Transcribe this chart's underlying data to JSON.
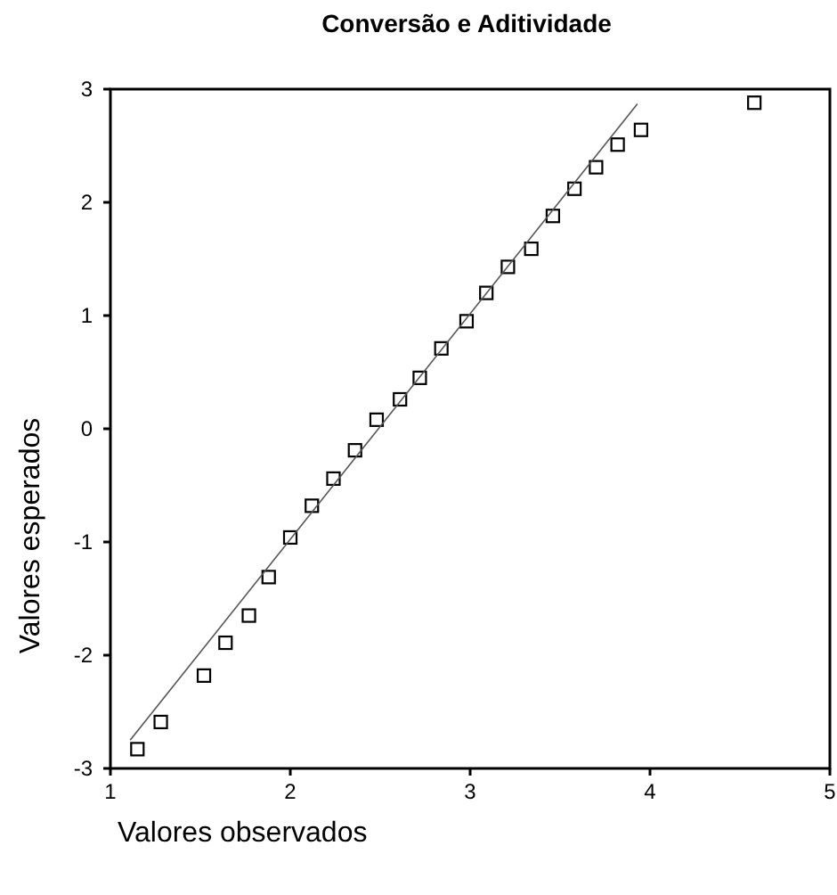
{
  "chart_data": {
    "type": "scatter",
    "title": "Conversão e Aditividade",
    "xlabel": "Valores observados",
    "ylabel": "Valores esperados",
    "xlim": [
      1,
      5
    ],
    "xticks": [
      1,
      2,
      3,
      4,
      5
    ],
    "ylim": [
      -3,
      3
    ],
    "yticks": [
      -3,
      -2,
      -1,
      0,
      1,
      2,
      3
    ],
    "grid": false,
    "series": [
      {
        "marker": "square",
        "color": "#000000",
        "x": [
          1.15,
          1.28,
          1.52,
          1.64,
          1.77,
          1.88,
          2.0,
          2.12,
          2.24,
          2.36,
          2.48,
          2.61,
          2.72,
          2.84,
          2.98,
          3.09,
          3.21,
          3.34,
          3.46,
          3.58,
          3.7,
          3.82,
          3.95,
          4.58
        ],
        "values": [
          -2.83,
          -2.59,
          -2.18,
          -1.89,
          -1.65,
          -1.31,
          -0.96,
          -0.68,
          -0.44,
          -0.19,
          0.08,
          0.26,
          0.45,
          0.71,
          0.95,
          1.2,
          1.43,
          1.59,
          1.88,
          2.12,
          2.31,
          2.51,
          2.64,
          2.88
        ]
      },
      {
        "type": "line",
        "color": "#555555",
        "x": [
          1.11,
          3.93
        ],
        "values": [
          -2.75,
          2.87
        ]
      }
    ]
  }
}
